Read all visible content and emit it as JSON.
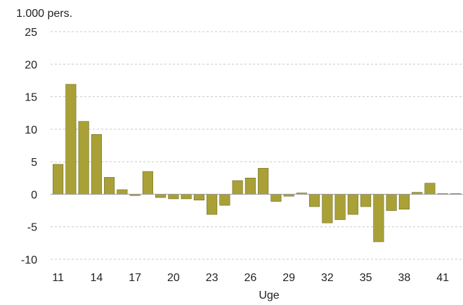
{
  "chart_data": {
    "type": "bar",
    "unit_label": "1.000 pers.",
    "xlabel": "Uge",
    "ylabel": "",
    "ylim": [
      -10,
      25
    ],
    "yticks": [
      25,
      20,
      15,
      10,
      5,
      0,
      -5,
      -10
    ],
    "grid": true,
    "legend": "none",
    "bar_color": "#a9a137",
    "bar_edge_color": "#6e6a1e",
    "x_tick_labels": [
      "11",
      "14",
      "17",
      "20",
      "23",
      "26",
      "29",
      "32",
      "35",
      "38",
      "41"
    ],
    "x_tick_weeks": [
      11,
      14,
      17,
      20,
      23,
      26,
      29,
      32,
      35,
      38,
      41
    ],
    "categories": [
      11,
      12,
      13,
      14,
      15,
      16,
      17,
      18,
      19,
      20,
      21,
      22,
      23,
      24,
      25,
      26,
      27,
      28,
      29,
      30,
      31,
      32,
      33,
      34,
      35,
      36,
      37,
      38,
      39,
      40,
      41,
      42
    ],
    "values": [
      4.6,
      16.9,
      11.2,
      9.2,
      2.6,
      0.7,
      -0.2,
      3.5,
      -0.5,
      -0.7,
      -0.7,
      -0.9,
      -3.1,
      -1.7,
      2.1,
      2.5,
      4.0,
      -1.1,
      -0.3,
      0.2,
      -1.9,
      -4.4,
      -3.9,
      -3.1,
      -1.9,
      -7.3,
      -2.5,
      -2.3,
      0.3,
      1.7,
      0.1,
      0.1
    ]
  }
}
